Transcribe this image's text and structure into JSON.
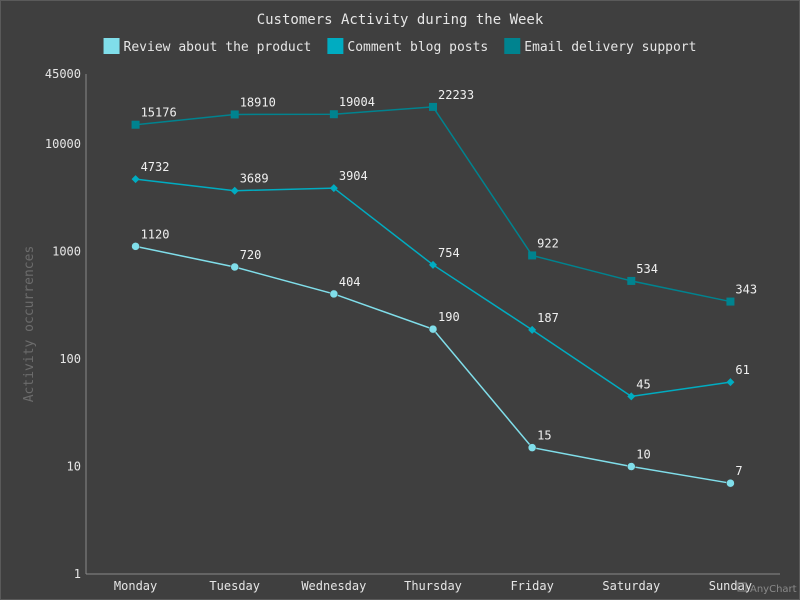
{
  "chart_data": {
    "type": "line",
    "title": "Customers Activity during the Week",
    "ylabel": "Activity occurrences",
    "xlabel": "",
    "yscale": "log",
    "ylim": [
      1,
      45000
    ],
    "y_ticks": [
      1,
      10,
      100,
      1000,
      10000,
      45000
    ],
    "grid": false,
    "legend_position": "top",
    "categories": [
      "Monday",
      "Tuesday",
      "Wednesday",
      "Thursday",
      "Friday",
      "Saturday",
      "Sunday"
    ],
    "series": [
      {
        "name": "Review about the product",
        "color": "#80deea",
        "marker": "circle",
        "values": [
          1120,
          720,
          404,
          190,
          15,
          10,
          7
        ]
      },
      {
        "name": "Comment blog posts",
        "color": "#00acc1",
        "marker": "diamond",
        "values": [
          4732,
          3689,
          3904,
          754,
          187,
          45,
          61
        ]
      },
      {
        "name": "Email delivery support",
        "color": "#00838f",
        "marker": "square",
        "values": [
          15176,
          18910,
          19004,
          22233,
          922,
          534,
          343
        ]
      }
    ]
  },
  "credit": {
    "text": "AnyChart",
    "icon": "anychart-logo-icon"
  }
}
